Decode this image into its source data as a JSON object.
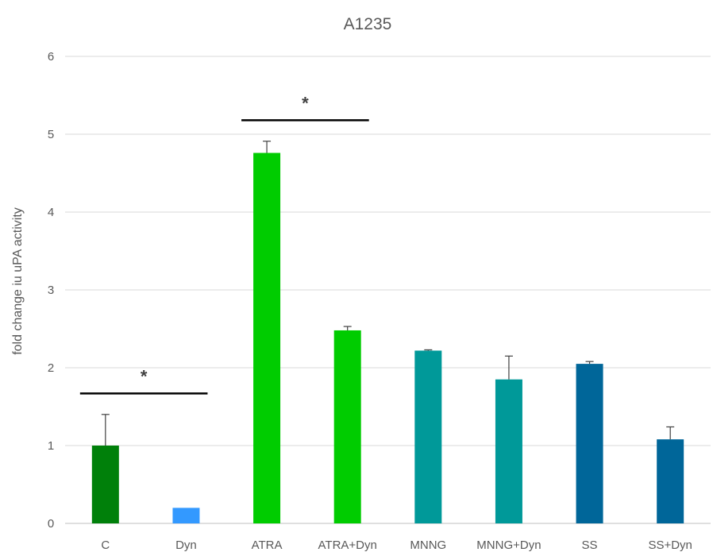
{
  "chart_data": {
    "type": "bar",
    "title": "A1235",
    "xlabel": "",
    "ylabel": "fold change iu uPA activity",
    "ylim": [
      0,
      6
    ],
    "yticks": [
      0,
      1,
      2,
      3,
      4,
      5,
      6
    ],
    "grid": true,
    "categories": [
      "C",
      "Dyn",
      "ATRA",
      "ATRA+Dyn",
      "MNNG",
      "MNNG+Dyn",
      "SS",
      "SS+Dyn"
    ],
    "values": [
      1.0,
      0.2,
      4.76,
      2.48,
      2.22,
      1.85,
      2.05,
      1.08
    ],
    "error": [
      0.4,
      0.0,
      0.15,
      0.05,
      0.01,
      0.3,
      0.03,
      0.16
    ],
    "colors": [
      "#00800a",
      "#3399ff",
      "#00cc00",
      "#00cc00",
      "#009999",
      "#009999",
      "#006699",
      "#006699"
    ],
    "significance": [
      {
        "from": 0,
        "to": 1,
        "y": 1.67,
        "label": "*"
      },
      {
        "from": 2,
        "to": 3,
        "y": 5.18,
        "label": "*"
      }
    ]
  }
}
